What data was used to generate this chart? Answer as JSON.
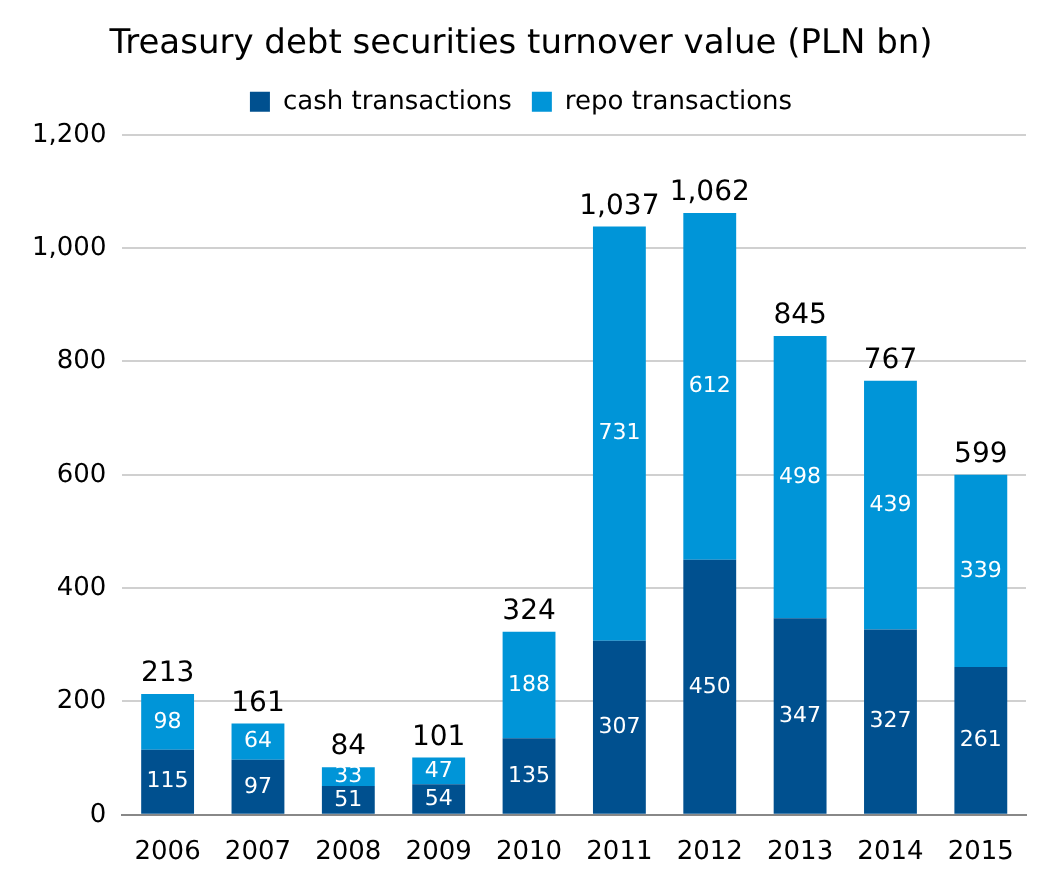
{
  "chart_data": {
    "type": "bar",
    "title": "Treasury debt securities turnover value (PLN bn)",
    "categories": [
      "2006",
      "2007",
      "2008",
      "2009",
      "2010",
      "2011",
      "2012",
      "2013",
      "2014",
      "2015"
    ],
    "series": [
      {
        "name": "cash transactions",
        "color": "#00508f",
        "values": [
          115,
          97,
          51,
          54,
          135,
          307,
          450,
          347,
          327,
          261
        ]
      },
      {
        "name": "repo transactions",
        "color": "#0095d8",
        "values": [
          98,
          64,
          33,
          47,
          188,
          731,
          612,
          498,
          439,
          339
        ]
      }
    ],
    "stacked": true,
    "data_labels": true,
    "totals": [
      "213",
      "161",
      "84",
      "101",
      "324",
      "1,037",
      "1,062",
      "845",
      "767",
      "599"
    ],
    "ylim": [
      0,
      1200
    ],
    "yticks": [
      0,
      200,
      400,
      600,
      800,
      {
        "value": 1000,
        "label": "1,000"
      },
      {
        "value": 1200,
        "label": "1,200"
      }
    ],
    "grid": "y",
    "legend": "top"
  }
}
